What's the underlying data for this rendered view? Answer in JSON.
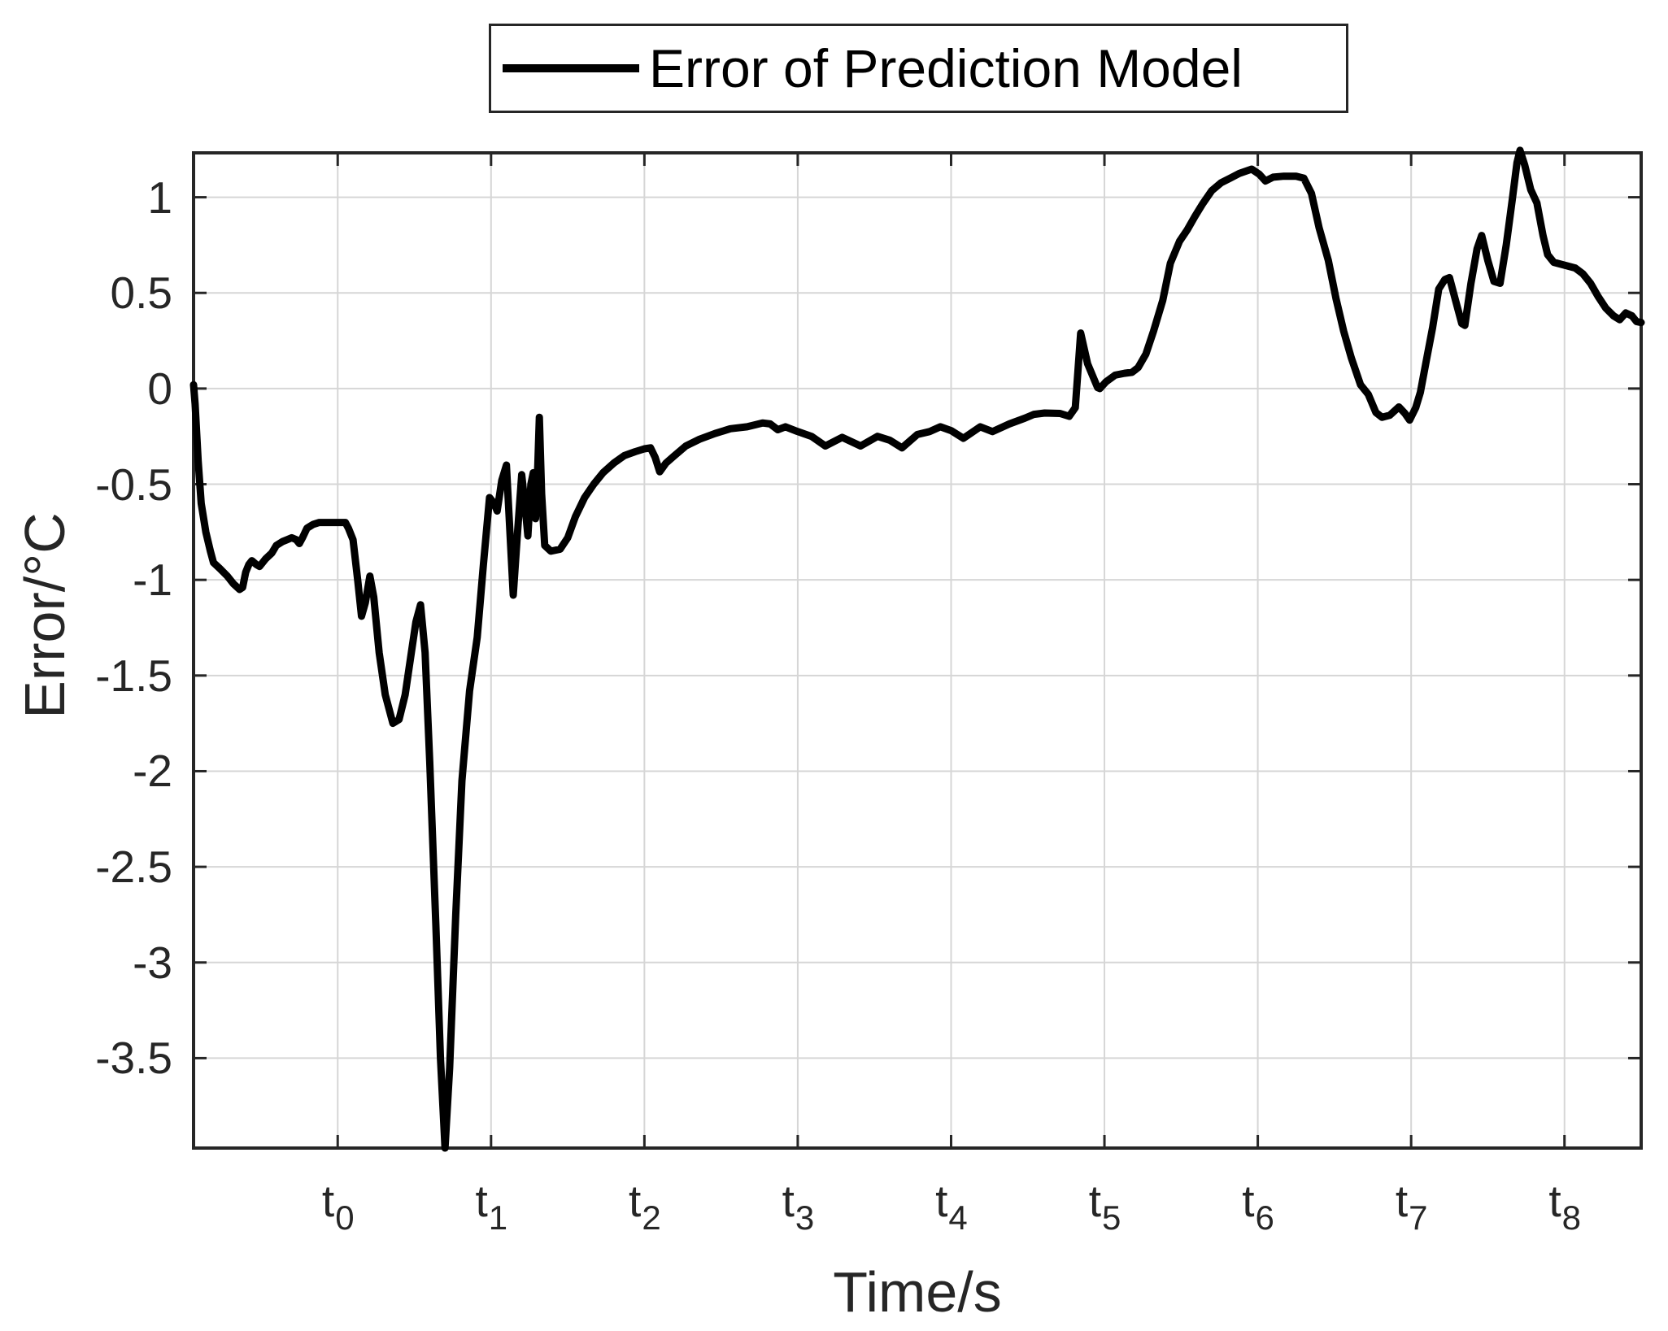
{
  "chart_data": {
    "type": "line",
    "legend": {
      "label": "Error of Prediction Model"
    },
    "xlabel": "Time/s",
    "ylabel": "Error/°C",
    "x_tick_labels": [
      {
        "base": "t",
        "sub": "0"
      },
      {
        "base": "t",
        "sub": "1"
      },
      {
        "base": "t",
        "sub": "2"
      },
      {
        "base": "t",
        "sub": "3"
      },
      {
        "base": "t",
        "sub": "4"
      },
      {
        "base": "t",
        "sub": "5"
      },
      {
        "base": "t",
        "sub": "6"
      },
      {
        "base": "t",
        "sub": "7"
      },
      {
        "base": "t",
        "sub": "8"
      }
    ],
    "x_tick_values": [
      0,
      1,
      2,
      3,
      4,
      5,
      6,
      7,
      8
    ],
    "y_tick_labels": [
      "1",
      "0.5",
      "0",
      "-0.5",
      "-1",
      "-1.5",
      "-2",
      "-2.5",
      "-3",
      "-3.5"
    ],
    "y_tick_values": [
      1,
      0.5,
      0,
      -0.5,
      -1,
      -1.5,
      -2,
      -2.5,
      -3,
      -3.5
    ],
    "xlim": [
      -0.94,
      8.5
    ],
    "ylim": [
      -3.97,
      1.232
    ],
    "grid": true,
    "legend_position": "above-plot-center",
    "colors": {
      "line": "#000000",
      "axis": "#262626",
      "grid": "#d6d6d6",
      "text": "#262626",
      "background": "#ffffff"
    },
    "series": [
      {
        "name": "Error of Prediction Model",
        "units": {
          "x": "s (symbolic ticks t0..t8)",
          "y": "°C"
        },
        "points": [
          [
            -0.94,
            0.02
          ],
          [
            -0.93,
            -0.08
          ],
          [
            -0.91,
            -0.38
          ],
          [
            -0.89,
            -0.6
          ],
          [
            -0.86,
            -0.75
          ],
          [
            -0.83,
            -0.85
          ],
          [
            -0.81,
            -0.91
          ],
          [
            -0.77,
            -0.94
          ],
          [
            -0.72,
            -0.98
          ],
          [
            -0.68,
            -1.02
          ],
          [
            -0.64,
            -1.05
          ],
          [
            -0.62,
            -1.04
          ],
          [
            -0.6,
            -0.96
          ],
          [
            -0.58,
            -0.92
          ],
          [
            -0.56,
            -0.9
          ],
          [
            -0.53,
            -0.92
          ],
          [
            -0.51,
            -0.93
          ],
          [
            -0.47,
            -0.89
          ],
          [
            -0.43,
            -0.86
          ],
          [
            -0.4,
            -0.82
          ],
          [
            -0.36,
            -0.8
          ],
          [
            -0.33,
            -0.79
          ],
          [
            -0.3,
            -0.78
          ],
          [
            -0.27,
            -0.79
          ],
          [
            -0.25,
            -0.81
          ],
          [
            -0.23,
            -0.78
          ],
          [
            -0.2,
            -0.73
          ],
          [
            -0.16,
            -0.71
          ],
          [
            -0.12,
            -0.7
          ],
          [
            -0.06,
            -0.7
          ],
          [
            0.0,
            -0.7
          ],
          [
            0.05,
            -0.7
          ],
          [
            0.07,
            -0.73
          ],
          [
            0.1,
            -0.79
          ],
          [
            0.13,
            -1.0
          ],
          [
            0.155,
            -1.19
          ],
          [
            0.18,
            -1.12
          ],
          [
            0.21,
            -0.98
          ],
          [
            0.235,
            -1.09
          ],
          [
            0.27,
            -1.38
          ],
          [
            0.31,
            -1.6
          ],
          [
            0.36,
            -1.75
          ],
          [
            0.4,
            -1.73
          ],
          [
            0.44,
            -1.6
          ],
          [
            0.48,
            -1.38
          ],
          [
            0.51,
            -1.22
          ],
          [
            0.54,
            -1.13
          ],
          [
            0.57,
            -1.38
          ],
          [
            0.6,
            -1.95
          ],
          [
            0.64,
            -2.8
          ],
          [
            0.67,
            -3.5
          ],
          [
            0.7,
            -3.97
          ],
          [
            0.73,
            -3.55
          ],
          [
            0.77,
            -2.75
          ],
          [
            0.81,
            -2.05
          ],
          [
            0.86,
            -1.58
          ],
          [
            0.91,
            -1.3
          ],
          [
            0.95,
            -0.92
          ],
          [
            0.99,
            -0.57
          ],
          [
            1.02,
            -0.6
          ],
          [
            1.04,
            -0.64
          ],
          [
            1.07,
            -0.48
          ],
          [
            1.1,
            -0.4
          ],
          [
            1.12,
            -0.7
          ],
          [
            1.145,
            -1.08
          ],
          [
            1.17,
            -0.78
          ],
          [
            1.2,
            -0.45
          ],
          [
            1.22,
            -0.6
          ],
          [
            1.24,
            -0.77
          ],
          [
            1.26,
            -0.5
          ],
          [
            1.275,
            -0.44
          ],
          [
            1.29,
            -0.68
          ],
          [
            1.305,
            -0.4
          ],
          [
            1.315,
            -0.15
          ],
          [
            1.33,
            -0.55
          ],
          [
            1.35,
            -0.82
          ],
          [
            1.39,
            -0.85
          ],
          [
            1.45,
            -0.84
          ],
          [
            1.5,
            -0.78
          ],
          [
            1.55,
            -0.67
          ],
          [
            1.61,
            -0.57
          ],
          [
            1.67,
            -0.5
          ],
          [
            1.73,
            -0.44
          ],
          [
            1.8,
            -0.39
          ],
          [
            1.87,
            -0.35
          ],
          [
            1.94,
            -0.33
          ],
          [
            2.0,
            -0.315
          ],
          [
            2.04,
            -0.31
          ],
          [
            2.07,
            -0.36
          ],
          [
            2.1,
            -0.435
          ],
          [
            2.14,
            -0.39
          ],
          [
            2.19,
            -0.355
          ],
          [
            2.27,
            -0.3
          ],
          [
            2.36,
            -0.265
          ],
          [
            2.46,
            -0.235
          ],
          [
            2.56,
            -0.21
          ],
          [
            2.67,
            -0.2
          ],
          [
            2.77,
            -0.18
          ],
          [
            2.82,
            -0.185
          ],
          [
            2.87,
            -0.215
          ],
          [
            2.92,
            -0.2
          ],
          [
            3.0,
            -0.225
          ],
          [
            3.09,
            -0.25
          ],
          [
            3.18,
            -0.3
          ],
          [
            3.29,
            -0.255
          ],
          [
            3.41,
            -0.3
          ],
          [
            3.52,
            -0.25
          ],
          [
            3.6,
            -0.27
          ],
          [
            3.68,
            -0.31
          ],
          [
            3.78,
            -0.24
          ],
          [
            3.86,
            -0.225
          ],
          [
            3.93,
            -0.2
          ],
          [
            4.0,
            -0.22
          ],
          [
            4.08,
            -0.26
          ],
          [
            4.19,
            -0.2
          ],
          [
            4.27,
            -0.225
          ],
          [
            4.38,
            -0.185
          ],
          [
            4.48,
            -0.155
          ],
          [
            4.54,
            -0.135
          ],
          [
            4.61,
            -0.128
          ],
          [
            4.71,
            -0.13
          ],
          [
            4.77,
            -0.145
          ],
          [
            4.81,
            -0.1
          ],
          [
            4.845,
            0.29
          ],
          [
            4.89,
            0.13
          ],
          [
            4.955,
            0.005
          ],
          [
            4.97,
            0.0
          ],
          [
            5.01,
            0.035
          ],
          [
            5.07,
            0.07
          ],
          [
            5.13,
            0.08
          ],
          [
            5.18,
            0.085
          ],
          [
            5.22,
            0.11
          ],
          [
            5.27,
            0.18
          ],
          [
            5.32,
            0.3
          ],
          [
            5.38,
            0.46
          ],
          [
            5.43,
            0.655
          ],
          [
            5.49,
            0.77
          ],
          [
            5.54,
            0.83
          ],
          [
            5.59,
            0.9
          ],
          [
            5.64,
            0.965
          ],
          [
            5.7,
            1.035
          ],
          [
            5.76,
            1.075
          ],
          [
            5.82,
            1.1
          ],
          [
            5.88,
            1.125
          ],
          [
            5.96,
            1.147
          ],
          [
            6.01,
            1.12
          ],
          [
            6.05,
            1.085
          ],
          [
            6.1,
            1.105
          ],
          [
            6.17,
            1.11
          ],
          [
            6.25,
            1.11
          ],
          [
            6.3,
            1.1
          ],
          [
            6.35,
            1.02
          ],
          [
            6.4,
            0.84
          ],
          [
            6.46,
            0.67
          ],
          [
            6.51,
            0.47
          ],
          [
            6.56,
            0.3
          ],
          [
            6.61,
            0.16
          ],
          [
            6.67,
            0.02
          ],
          [
            6.72,
            -0.03
          ],
          [
            6.77,
            -0.125
          ],
          [
            6.81,
            -0.15
          ],
          [
            6.86,
            -0.14
          ],
          [
            6.92,
            -0.096
          ],
          [
            6.96,
            -0.13
          ],
          [
            6.99,
            -0.165
          ],
          [
            7.03,
            -0.1
          ],
          [
            7.06,
            -0.02
          ],
          [
            7.1,
            0.15
          ],
          [
            7.14,
            0.32
          ],
          [
            7.18,
            0.52
          ],
          [
            7.22,
            0.57
          ],
          [
            7.25,
            0.58
          ],
          [
            7.29,
            0.46
          ],
          [
            7.33,
            0.34
          ],
          [
            7.35,
            0.33
          ],
          [
            7.39,
            0.55
          ],
          [
            7.43,
            0.73
          ],
          [
            7.46,
            0.8
          ],
          [
            7.5,
            0.67
          ],
          [
            7.54,
            0.56
          ],
          [
            7.58,
            0.55
          ],
          [
            7.62,
            0.75
          ],
          [
            7.66,
            0.99
          ],
          [
            7.69,
            1.18
          ],
          [
            7.71,
            1.245
          ],
          [
            7.74,
            1.17
          ],
          [
            7.78,
            1.04
          ],
          [
            7.82,
            0.97
          ],
          [
            7.86,
            0.8
          ],
          [
            7.89,
            0.7
          ],
          [
            7.93,
            0.66
          ],
          [
            8.0,
            0.645
          ],
          [
            8.07,
            0.63
          ],
          [
            8.12,
            0.6
          ],
          [
            8.17,
            0.55
          ],
          [
            8.22,
            0.48
          ],
          [
            8.27,
            0.42
          ],
          [
            8.32,
            0.38
          ],
          [
            8.36,
            0.36
          ],
          [
            8.4,
            0.395
          ],
          [
            8.44,
            0.38
          ],
          [
            8.47,
            0.35
          ],
          [
            8.5,
            0.345
          ]
        ]
      }
    ]
  }
}
